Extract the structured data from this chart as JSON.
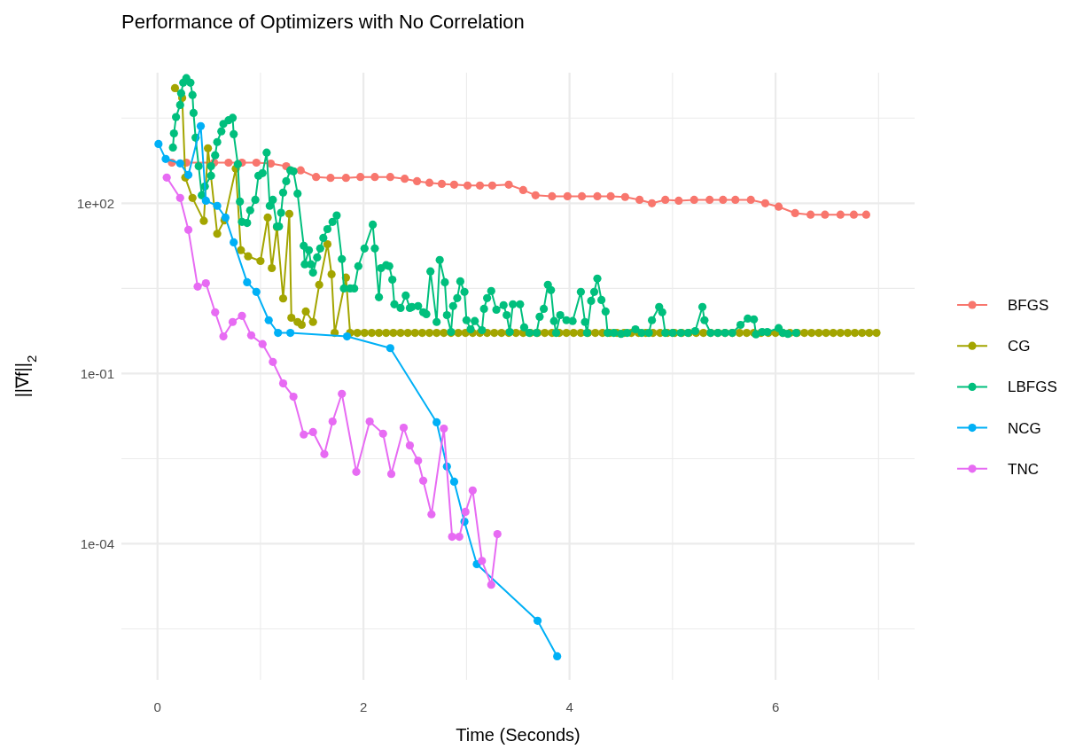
{
  "chart_data": {
    "type": "line",
    "title": "Performance of Optimizers with No Correlation",
    "xlabel": "Time (Seconds)",
    "ylabel": "||∇f||$_{2}$",
    "log": "y",
    "grid": true,
    "legend": "right",
    "marker": "circle",
    "line_style": "solid",
    "xlim": [
      -0.35,
      7.35
    ],
    "xticks": [
      0,
      2,
      4,
      6
    ],
    "ylim": [
      4e-07,
      20000
    ],
    "yticks": [
      {
        "value": 100,
        "label": "1e+02"
      },
      {
        "value": 0.1,
        "label": "1e-01"
      },
      {
        "value": 0.0001,
        "label": "1e-04"
      }
    ],
    "series": [
      {
        "name": "BFGS",
        "color": "#f8766d",
        "x": [
          0.14,
          0.28,
          0.55,
          0.69,
          0.82,
          0.96,
          1.1,
          1.25,
          1.39,
          1.54,
          1.68,
          1.83,
          1.97,
          2.11,
          2.26,
          2.4,
          2.52,
          2.64,
          2.76,
          2.88,
          3.01,
          3.13,
          3.25,
          3.41,
          3.55,
          3.67,
          3.83,
          3.98,
          4.12,
          4.27,
          4.4,
          4.54,
          4.68,
          4.8,
          4.93,
          5.06,
          5.21,
          5.36,
          5.49,
          5.61,
          5.76,
          5.9,
          6.03,
          6.19,
          6.34,
          6.48,
          6.63,
          6.76,
          6.88
        ],
        "values": [
          520,
          520,
          520,
          520,
          520,
          520,
          500,
          450,
          380,
          290,
          280,
          280,
          290,
          290,
          290,
          270,
          245,
          230,
          220,
          213,
          205,
          205,
          205,
          213,
          171,
          138,
          133,
          133,
          133,
          133,
          133,
          129,
          115,
          100,
          115,
          111,
          115,
          115,
          115,
          115,
          115,
          100,
          87,
          67,
          63,
          63,
          63,
          63,
          63
        ]
      },
      {
        "name": "CG",
        "color": "#a3a500",
        "x": [
          0.17,
          0.24,
          0.27,
          0.34,
          0.45,
          0.49,
          0.58,
          0.65,
          0.76,
          0.81,
          0.88,
          1.0,
          1.07,
          1.11,
          1.16,
          1.22,
          1.28,
          1.3,
          1.36,
          1.4,
          1.44,
          1.51,
          1.57,
          1.65,
          1.69,
          1.72,
          1.83,
          1.87,
          1.94,
          2.01,
          2.08,
          2.15,
          2.22,
          2.29,
          2.36,
          2.43,
          2.5,
          2.57,
          2.64,
          2.71,
          2.78,
          2.85,
          2.92,
          2.99,
          3.06,
          3.13,
          3.2,
          3.27,
          3.34,
          3.41,
          3.48,
          3.55,
          3.62,
          3.69,
          3.76,
          3.83,
          3.9,
          3.97,
          4.04,
          4.11,
          4.18,
          4.25,
          4.32,
          4.39,
          4.46,
          4.53,
          4.6,
          4.67,
          4.74,
          4.81,
          4.88,
          4.95,
          5.02,
          5.09,
          5.16,
          5.23,
          5.3,
          5.37,
          5.44,
          5.51,
          5.58,
          5.65,
          5.72,
          5.79,
          5.86,
          5.93,
          6.0,
          6.07,
          6.14,
          6.21,
          6.28,
          6.35,
          6.42,
          6.49,
          6.56,
          6.63,
          6.7,
          6.77,
          6.84,
          6.91,
          6.98
        ],
        "values": [
          10700,
          7200,
          284,
          124,
          49,
          930,
          29,
          50,
          406,
          14.9,
          11.6,
          9.6,
          56,
          7.2,
          38,
          2.1,
          65,
          0.96,
          0.81,
          0.72,
          1.24,
          0.81,
          3.65,
          19,
          5.6,
          0.52,
          4.9,
          0.52,
          0.52,
          0.52,
          0.52,
          0.52,
          0.52,
          0.52,
          0.52,
          0.52,
          0.52,
          0.52,
          0.52,
          0.52,
          0.52,
          0.52,
          0.52,
          0.52,
          0.52,
          0.52,
          0.52,
          0.52,
          0.52,
          0.52,
          0.52,
          0.52,
          0.52,
          0.52,
          0.52,
          0.52,
          0.52,
          0.52,
          0.52,
          0.52,
          0.52,
          0.52,
          0.52,
          0.52,
          0.52,
          0.52,
          0.52,
          0.52,
          0.52,
          0.52,
          0.52,
          0.52,
          0.52,
          0.52,
          0.52,
          0.52,
          0.52,
          0.52,
          0.52,
          0.52,
          0.52,
          0.52,
          0.52,
          0.52,
          0.52,
          0.52,
          0.52,
          0.52,
          0.52,
          0.52,
          0.52,
          0.52,
          0.52,
          0.52,
          0.52,
          0.52,
          0.52,
          0.52,
          0.52,
          0.52,
          0.52
        ]
      },
      {
        "name": "LBFGS",
        "color": "#00bf7d",
        "x": [
          0.15,
          0.16,
          0.18,
          0.22,
          0.23,
          0.25,
          0.28,
          0.32,
          0.34,
          0.35,
          0.37,
          0.4,
          0.43,
          0.46,
          0.52,
          0.52,
          0.56,
          0.58,
          0.62,
          0.64,
          0.69,
          0.73,
          0.74,
          0.78,
          0.8,
          0.82,
          0.87,
          0.9,
          0.95,
          0.98,
          1.02,
          1.06,
          1.09,
          1.12,
          1.16,
          1.18,
          1.2,
          1.22,
          1.25,
          1.29,
          1.32,
          1.36,
          1.42,
          1.43,
          1.47,
          1.49,
          1.51,
          1.55,
          1.58,
          1.61,
          1.65,
          1.7,
          1.74,
          1.79,
          1.81,
          1.87,
          1.91,
          1.95,
          2.01,
          2.09,
          2.11,
          2.15,
          2.17,
          2.22,
          2.25,
          2.28,
          2.3,
          2.36,
          2.41,
          2.45,
          2.47,
          2.53,
          2.58,
          2.61,
          2.65,
          2.71,
          2.74,
          2.79,
          2.81,
          2.85,
          2.87,
          2.91,
          2.94,
          2.98,
          3.0,
          3.04,
          3.08,
          3.15,
          3.17,
          3.2,
          3.24,
          3.29,
          3.36,
          3.39,
          3.42,
          3.45,
          3.52,
          3.56,
          3.61,
          3.68,
          3.71,
          3.75,
          3.79,
          3.82,
          3.85,
          3.87,
          3.91,
          3.97,
          4.03,
          4.11,
          4.15,
          4.17,
          4.21,
          4.24,
          4.27,
          4.31,
          4.35,
          4.37,
          4.43,
          4.5,
          4.56,
          4.64,
          4.7,
          4.77,
          4.8,
          4.87,
          4.9,
          4.93,
          5.0,
          5.08,
          5.15,
          5.22,
          5.29,
          5.31,
          5.37,
          5.44,
          5.51,
          5.58,
          5.66,
          5.73,
          5.79,
          5.81,
          5.87,
          5.92,
          6.03,
          6.07,
          6.12,
          6.2
        ],
        "values": [
          960,
          1700,
          3300,
          5400,
          8700,
          13300,
          16000,
          13300,
          8100,
          3900,
          1430,
          450,
          138,
          198,
          305,
          450,
          700,
          1200,
          1850,
          2500,
          2900,
          3200,
          1650,
          490,
          107,
          47,
          45,
          75,
          115,
          305,
          340,
          780,
          90,
          115,
          39,
          39,
          68,
          154,
          245,
          380,
          365,
          148,
          17.8,
          8.4,
          14.9,
          8.4,
          6.0,
          11.1,
          16,
          24.5,
          35,
          47,
          61,
          10.4,
          3.16,
          3.16,
          3.16,
          7.8,
          16,
          42,
          16,
          2.21,
          7.2,
          8.1,
          7.8,
          4.5,
          1.66,
          1.43,
          2.37,
          1.43,
          1.49,
          1.54,
          1.2,
          1.11,
          6.3,
          0.81,
          10,
          4.06,
          1.07,
          0.54,
          1.54,
          2.13,
          4.2,
          2.74,
          0.87,
          0.6,
          0.84,
          0.58,
          1.38,
          2.13,
          2.84,
          1.33,
          1.6,
          1.07,
          0.54,
          1.66,
          1.66,
          0.65,
          0.52,
          0.52,
          1.0,
          1.38,
          3.65,
          2.95,
          0.84,
          0.52,
          1.07,
          0.87,
          0.84,
          2.74,
          0.81,
          0.52,
          1.91,
          2.74,
          4.7,
          1.98,
          1.24,
          0.52,
          0.52,
          0.5,
          0.52,
          0.6,
          0.52,
          0.52,
          0.87,
          1.49,
          1.2,
          0.52,
          0.52,
          0.52,
          0.52,
          0.56,
          1.49,
          0.87,
          0.52,
          0.52,
          0.52,
          0.52,
          0.72,
          0.93,
          0.9,
          0.49,
          0.54,
          0.54,
          0.63,
          0.52,
          0.5,
          0.52
        ]
      },
      {
        "name": "NCG",
        "color": "#00b0f6",
        "x": [
          0.01,
          0.08,
          0.22,
          0.3,
          0.42,
          0.47,
          0.58,
          0.66,
          0.74,
          0.87,
          0.96,
          1.08,
          1.17,
          1.29,
          1.84,
          2.26,
          2.71,
          2.81,
          2.88,
          2.98,
          3.1,
          3.69,
          3.88
        ],
        "values": [
          1110,
          604,
          505,
          316,
          2290,
          111,
          90,
          56,
          20.5,
          4.06,
          2.74,
          0.87,
          0.52,
          0.52,
          0.45,
          0.28,
          0.0138,
          0.0023,
          0.00124,
          0.000245,
          4.37e-05,
          4.4e-06,
          1.04e-06
        ]
      },
      {
        "name": "TNC",
        "color": "#e76bf3",
        "x": [
          0.09,
          0.22,
          0.3,
          0.39,
          0.47,
          0.56,
          0.64,
          0.73,
          0.82,
          0.91,
          1.02,
          1.12,
          1.22,
          1.32,
          1.42,
          1.51,
          1.62,
          1.7,
          1.79,
          1.93,
          2.06,
          2.19,
          2.27,
          2.39,
          2.45,
          2.53,
          2.58,
          2.66,
          2.78,
          2.86,
          2.93,
          2.99,
          3.06,
          3.15,
          3.24,
          3.3
        ],
        "values": [
          284,
          124,
          34,
          3.4,
          3.9,
          1.2,
          0.45,
          0.81,
          1.04,
          0.47,
          0.33,
          0.16,
          0.067,
          0.039,
          0.0084,
          0.0093,
          0.0038,
          0.0143,
          0.044,
          0.00185,
          0.0143,
          0.0087,
          0.0017,
          0.0111,
          0.0054,
          0.0029,
          0.00129,
          0.00033,
          0.0107,
          0.000133,
          0.000133,
          0.000365,
          0.00087,
          5e-05,
          1.9e-05,
          0.000148
        ]
      }
    ]
  }
}
